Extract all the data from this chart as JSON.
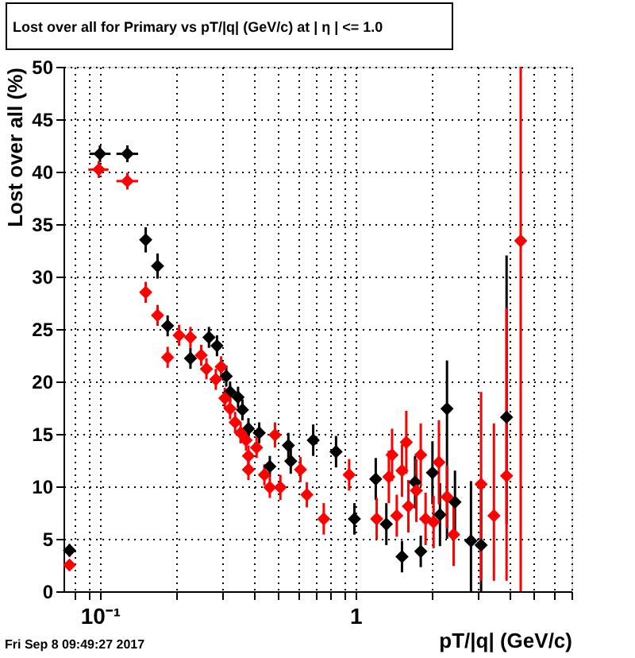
{
  "chart_data": {
    "type": "scatter",
    "title": "Lost over all for Primary vs pT/|q| (GeV/c) at | η | <= 1.0",
    "xlabel": "pT/|q| (GeV/c)",
    "ylabel": "Lost over all (%)",
    "annotations": [
      "Fri Sep  8 09:49:27 2017"
    ],
    "log": "x",
    "marker": "diamond",
    "grid": true,
    "xlim": [
      0.072,
      7.0
    ],
    "ylim": [
      0,
      50
    ],
    "xticks": [
      {
        "value": 0.08,
        "label": null
      },
      {
        "value": 0.09,
        "label": null
      },
      {
        "value": 0.1,
        "label": "10⁻¹"
      },
      {
        "value": 0.2,
        "label": null
      },
      {
        "value": 0.3,
        "label": null
      },
      {
        "value": 0.4,
        "label": null
      },
      {
        "value": 0.5,
        "label": null
      },
      {
        "value": 0.6,
        "label": null
      },
      {
        "value": 0.7,
        "label": null
      },
      {
        "value": 0.8,
        "label": null
      },
      {
        "value": 0.9,
        "label": null
      },
      {
        "value": 1,
        "label": "1"
      },
      {
        "value": 2,
        "label": null
      },
      {
        "value": 3,
        "label": null
      },
      {
        "value": 4,
        "label": null
      },
      {
        "value": 5,
        "label": null
      },
      {
        "value": 6,
        "label": null
      },
      {
        "value": 7,
        "label": null
      }
    ],
    "yticks": [
      0,
      5,
      10,
      15,
      20,
      25,
      30,
      35,
      40,
      45,
      50
    ],
    "series": [
      {
        "color": "#000000",
        "x": [
          0.076,
          0.1,
          0.128,
          0.151,
          0.168,
          0.184,
          0.226,
          0.267,
          0.287,
          0.312,
          0.323,
          0.347,
          0.361,
          0.381,
          0.42,
          0.462,
          0.546,
          0.558,
          0.683,
          0.839,
          0.99,
          1.2,
          1.32,
          1.52,
          1.71,
          1.8,
          2.0,
          2.14,
          2.28,
          2.45,
          2.83,
          3.1,
          3.9
        ],
        "values": [
          3.9,
          41.7,
          41.7,
          33.5,
          31.0,
          25.3,
          22.2,
          24.2,
          23.4,
          20.5,
          19.0,
          18.5,
          17.3,
          15.5,
          15.1,
          11.9,
          13.9,
          12.4,
          14.4,
          13.3,
          6.9,
          10.7,
          6.4,
          3.3,
          10.4,
          3.8,
          11.3,
          7.3,
          17.4,
          8.5,
          4.8,
          4.4,
          16.6
        ],
        "errors": [
          0.6,
          0.8,
          0.8,
          1.2,
          1.2,
          1.0,
          1.0,
          1.0,
          1.0,
          1.0,
          1.0,
          1.0,
          1.0,
          1.0,
          1.0,
          1.0,
          1.2,
          1.2,
          1.5,
          1.5,
          1.5,
          2,
          2,
          1.5,
          2.5,
          1.5,
          3,
          3,
          [
            5.0,
            22.0
          ],
          3,
          [
            0,
            10.5
          ],
          [
            0,
            10
          ],
          [
            6.4,
            32
          ]
        ],
        "xerrors": [
          null,
          [
            0.091,
            0.11
          ],
          [
            0.116,
            0.141
          ],
          null,
          null,
          null,
          null,
          null,
          null,
          null,
          null,
          null,
          null,
          null,
          null,
          null,
          null,
          null,
          null,
          null,
          null,
          null,
          null,
          null,
          null,
          null,
          null,
          null,
          null,
          null,
          null,
          null,
          null
        ]
      },
      {
        "color": "#ff0000",
        "x": [
          0.076,
          0.099,
          0.128,
          0.151,
          0.168,
          0.184,
          0.204,
          0.226,
          0.249,
          0.261,
          0.284,
          0.298,
          0.308,
          0.323,
          0.338,
          0.355,
          0.373,
          0.381,
          0.381,
          0.41,
          0.44,
          0.462,
          0.484,
          0.508,
          0.609,
          0.645,
          0.751,
          0.944,
          1.21,
          1.35,
          1.39,
          1.45,
          1.52,
          1.58,
          1.61,
          1.73,
          1.8,
          1.88,
          2.02,
          2.12,
          2.28,
          2.42,
          3.1,
          3.48,
          3.9,
          4.43
        ],
        "values": [
          2.5,
          40.2,
          39.1,
          28.5,
          26.3,
          22.3,
          24.4,
          24.2,
          22.5,
          21.2,
          20.2,
          21.4,
          18.4,
          17.4,
          16.1,
          15.1,
          14.4,
          12.9,
          11.6,
          13.7,
          11.1,
          9.9,
          14.9,
          9.9,
          11.6,
          9.2,
          6.9,
          11.1,
          6.9,
          10.9,
          13.0,
          7.2,
          11.5,
          14.2,
          8.1,
          9.6,
          13.0,
          6.9,
          6.6,
          12.3,
          9.0,
          5.4,
          10.2,
          7.2,
          11.0,
          33.4
        ],
        "errors": [
          0.5,
          0.8,
          0.8,
          1.0,
          1.0,
          1.0,
          1.0,
          1.0,
          1.0,
          1.0,
          1.0,
          1.0,
          1.0,
          1.0,
          1.0,
          1.0,
          1.0,
          1.0,
          1.0,
          1.0,
          1.0,
          1.0,
          1.2,
          1.2,
          1.2,
          1.2,
          1.5,
          1.5,
          2,
          2.5,
          2.5,
          2,
          2.5,
          3,
          2.5,
          3,
          3,
          2.5,
          2.5,
          4,
          3,
          3,
          [
            1,
            19
          ],
          [
            1,
            16
          ],
          [
            1,
            27
          ],
          [
            0,
            50
          ]
        ],
        "xerrors": [
          null,
          [
            0.09,
            0.108
          ],
          [
            0.116,
            0.141
          ],
          null,
          null,
          null,
          null,
          null,
          null,
          null,
          null,
          null,
          null,
          null,
          null,
          null,
          null,
          null,
          null,
          null,
          null,
          null,
          null,
          null,
          null,
          null,
          null,
          null,
          null,
          null,
          null,
          null,
          null,
          null,
          null,
          null,
          null,
          null,
          null,
          null,
          null,
          null,
          null,
          null,
          null,
          null
        ]
      }
    ]
  }
}
